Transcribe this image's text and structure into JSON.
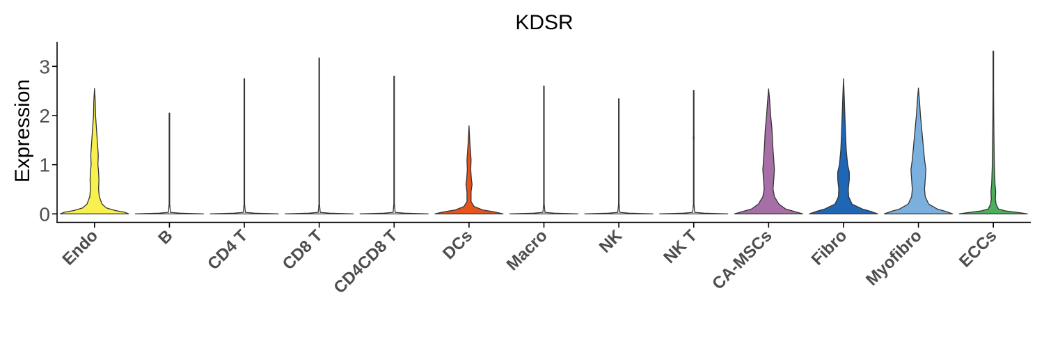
{
  "chart_data": {
    "type": "violin",
    "title": "KDSR",
    "xlabel": "",
    "ylabel": "Expression",
    "ylim": [
      -0.18,
      3.5
    ],
    "yticks": [
      0,
      1,
      2,
      3
    ],
    "grid": false,
    "legend": "none",
    "categories": [
      "Endo",
      "B",
      "CD4 T",
      "CD8 T",
      "CD4CD8 T",
      "DCs",
      "Macro",
      "NK",
      "NK T",
      "CA-MSCs",
      "Fibro",
      "Myofibro",
      "ECCs"
    ],
    "colors": [
      "#F7F04E",
      "#FFFFFF",
      "#FFFFFF",
      "#FFFFFF",
      "#FFFFFF",
      "#E5541C",
      "#FFFFFF",
      "#FFFFFF",
      "#FFFFFF",
      "#A66FA6",
      "#1F66B5",
      "#7BB0DE",
      "#4CAF5A"
    ],
    "max_values": [
      2.55,
      2.05,
      2.75,
      3.17,
      2.8,
      1.79,
      2.6,
      2.34,
      2.51,
      2.54,
      2.75,
      2.56,
      3.31
    ],
    "density_profiles": [
      [
        [
          0,
          1.0
        ],
        [
          0.03,
          0.9
        ],
        [
          0.07,
          0.6
        ],
        [
          0.12,
          0.35
        ],
        [
          0.2,
          0.22
        ],
        [
          0.35,
          0.14
        ],
        [
          0.5,
          0.12
        ],
        [
          0.7,
          0.13
        ],
        [
          0.85,
          0.12
        ],
        [
          1.0,
          0.1
        ],
        [
          1.2,
          0.11
        ],
        [
          1.4,
          0.09
        ],
        [
          1.7,
          0.06
        ],
        [
          2.0,
          0.03
        ],
        [
          2.3,
          0.02
        ],
        [
          2.55,
          0.0
        ]
      ],
      [
        [
          0,
          1.0
        ],
        [
          0.015,
          0.3
        ],
        [
          0.03,
          0.03
        ],
        [
          0.2,
          0.008
        ],
        [
          2.05,
          0.008
        ]
      ],
      [
        [
          0,
          1.0
        ],
        [
          0.015,
          0.3
        ],
        [
          0.03,
          0.03
        ],
        [
          0.2,
          0.008
        ],
        [
          2.75,
          0.008
        ]
      ],
      [
        [
          0,
          1.0
        ],
        [
          0.015,
          0.3
        ],
        [
          0.03,
          0.03
        ],
        [
          0.2,
          0.008
        ],
        [
          3.17,
          0.008
        ]
      ],
      [
        [
          0,
          1.0
        ],
        [
          0.015,
          0.3
        ],
        [
          0.03,
          0.03
        ],
        [
          0.2,
          0.008
        ],
        [
          2.8,
          0.008
        ]
      ],
      [
        [
          0,
          1.0
        ],
        [
          0.04,
          0.75
        ],
        [
          0.08,
          0.4
        ],
        [
          0.15,
          0.15
        ],
        [
          0.25,
          0.06
        ],
        [
          0.45,
          0.06
        ],
        [
          0.6,
          0.09
        ],
        [
          0.7,
          0.07
        ],
        [
          0.9,
          0.05
        ],
        [
          1.1,
          0.06
        ],
        [
          1.3,
          0.04
        ],
        [
          1.5,
          0.02
        ],
        [
          1.79,
          0.0
        ]
      ],
      [
        [
          0,
          1.0
        ],
        [
          0.015,
          0.3
        ],
        [
          0.03,
          0.03
        ],
        [
          0.2,
          0.008
        ],
        [
          2.6,
          0.008
        ]
      ],
      [
        [
          0,
          1.0
        ],
        [
          0.015,
          0.3
        ],
        [
          0.03,
          0.03
        ],
        [
          0.2,
          0.008
        ],
        [
          2.34,
          0.008
        ]
      ],
      [
        [
          0,
          1.0
        ],
        [
          0.015,
          0.3
        ],
        [
          0.03,
          0.03
        ],
        [
          0.2,
          0.008
        ],
        [
          1.5,
          0.008
        ],
        [
          1.55,
          0.012
        ],
        [
          1.6,
          0.008
        ],
        [
          2.51,
          0.008
        ]
      ],
      [
        [
          0,
          1.0
        ],
        [
          0.05,
          0.75
        ],
        [
          0.1,
          0.5
        ],
        [
          0.2,
          0.3
        ],
        [
          0.35,
          0.17
        ],
        [
          0.5,
          0.13
        ],
        [
          0.7,
          0.15
        ],
        [
          0.9,
          0.17
        ],
        [
          1.1,
          0.15
        ],
        [
          1.4,
          0.12
        ],
        [
          1.7,
          0.1
        ],
        [
          2.0,
          0.06
        ],
        [
          2.3,
          0.03
        ],
        [
          2.54,
          0.0
        ]
      ],
      [
        [
          0,
          1.0
        ],
        [
          0.05,
          0.8
        ],
        [
          0.1,
          0.55
        ],
        [
          0.2,
          0.25
        ],
        [
          0.35,
          0.15
        ],
        [
          0.5,
          0.14
        ],
        [
          0.7,
          0.17
        ],
        [
          0.85,
          0.17
        ],
        [
          1.0,
          0.12
        ],
        [
          1.3,
          0.08
        ],
        [
          1.6,
          0.06
        ],
        [
          2.0,
          0.04
        ],
        [
          2.4,
          0.02
        ],
        [
          2.75,
          0.0
        ]
      ],
      [
        [
          0,
          1.0
        ],
        [
          0.05,
          0.8
        ],
        [
          0.1,
          0.55
        ],
        [
          0.2,
          0.3
        ],
        [
          0.35,
          0.2
        ],
        [
          0.5,
          0.18
        ],
        [
          0.7,
          0.2
        ],
        [
          0.9,
          0.22
        ],
        [
          1.1,
          0.18
        ],
        [
          1.4,
          0.14
        ],
        [
          1.7,
          0.1
        ],
        [
          2.0,
          0.06
        ],
        [
          2.3,
          0.03
        ],
        [
          2.56,
          0.0
        ]
      ],
      [
        [
          0,
          1.0
        ],
        [
          0.03,
          0.7
        ],
        [
          0.06,
          0.35
        ],
        [
          0.1,
          0.15
        ],
        [
          0.2,
          0.08
        ],
        [
          0.3,
          0.06
        ],
        [
          0.45,
          0.07
        ],
        [
          0.6,
          0.05
        ],
        [
          0.8,
          0.04
        ],
        [
          1.0,
          0.03
        ],
        [
          1.5,
          0.02
        ],
        [
          2.0,
          0.012
        ],
        [
          2.5,
          0.008
        ],
        [
          3.31,
          0.008
        ]
      ]
    ]
  }
}
